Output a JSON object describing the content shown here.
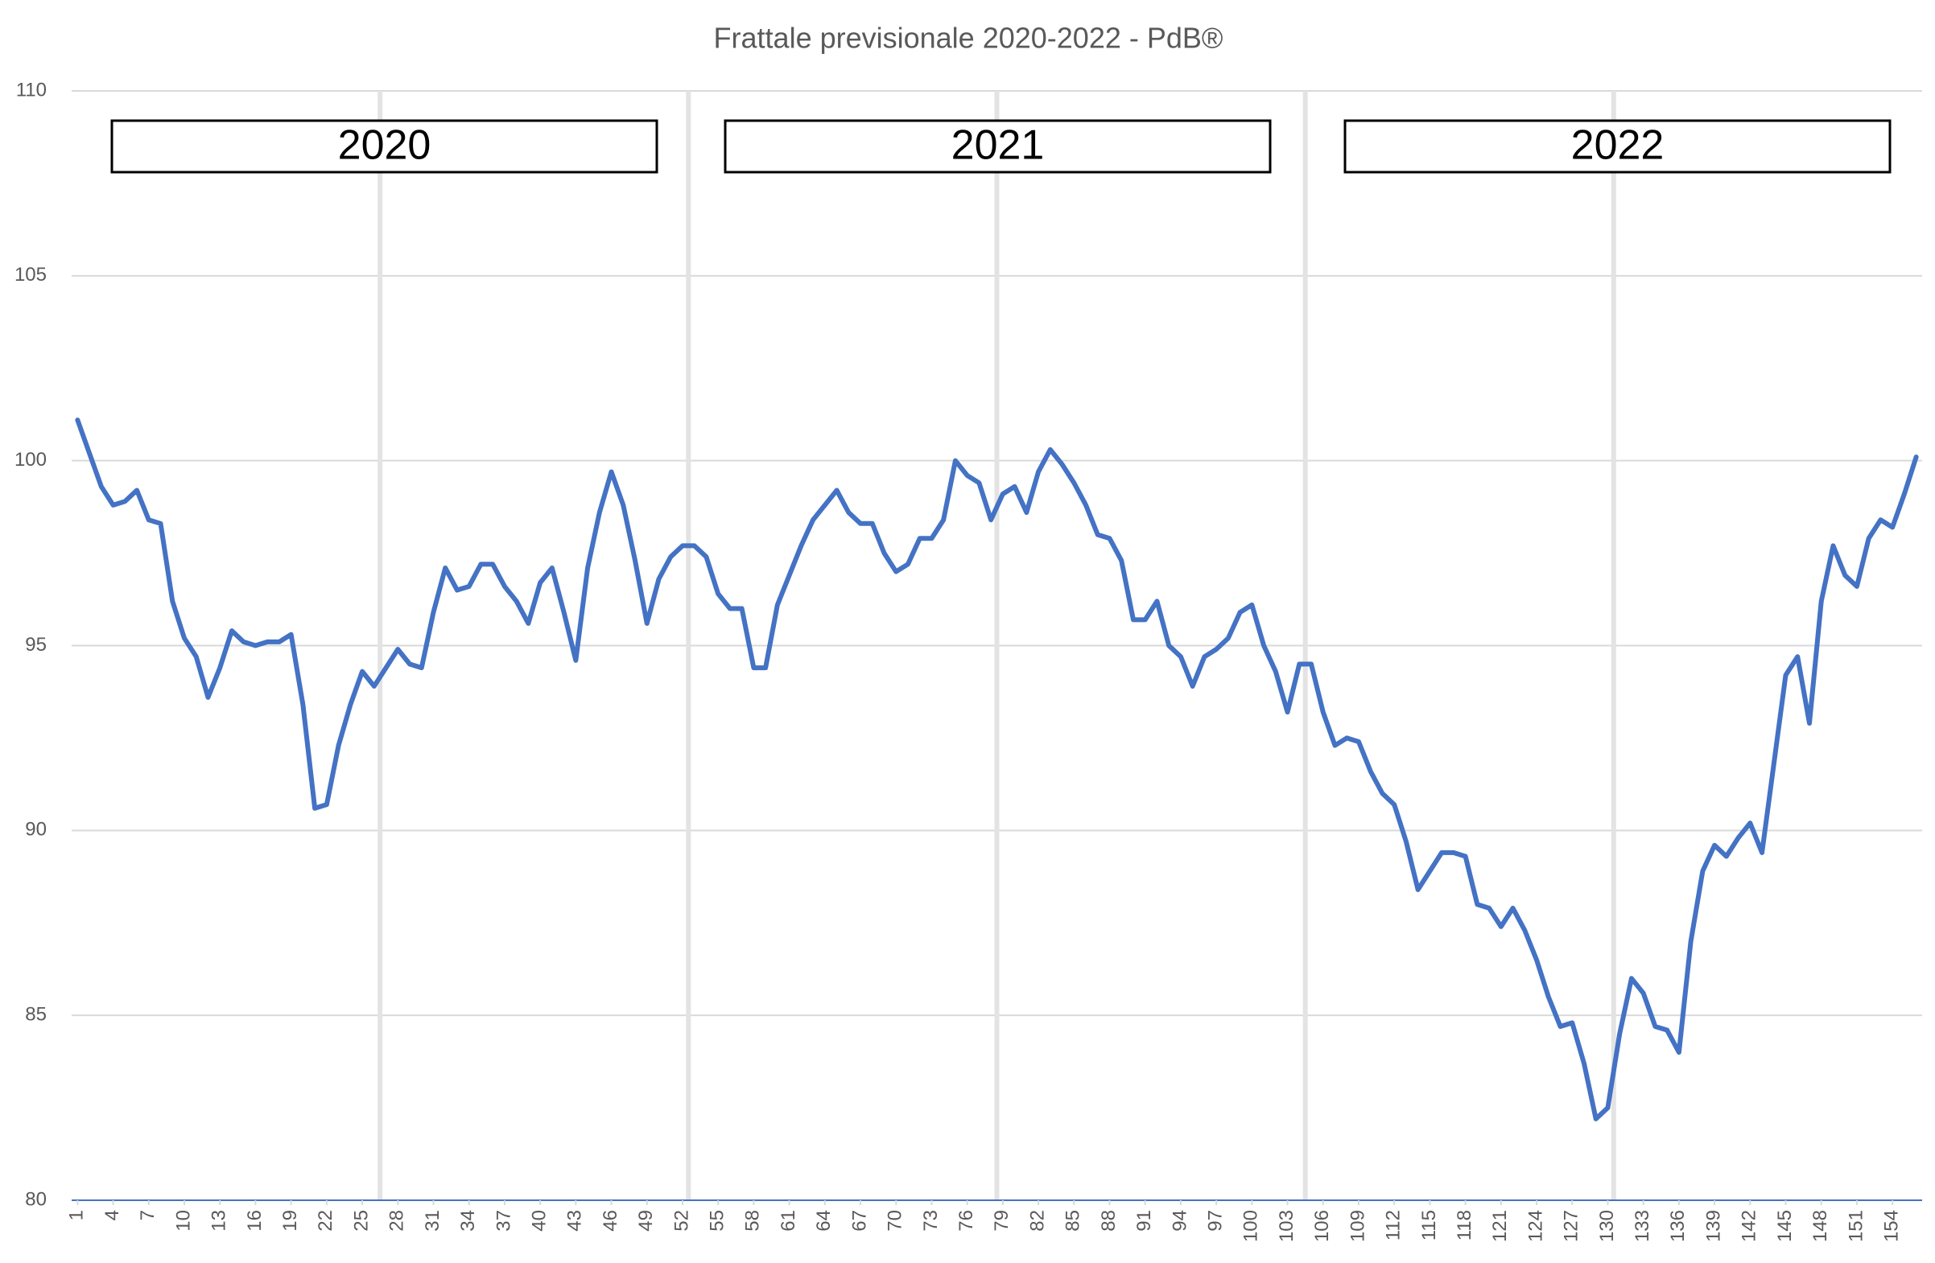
{
  "chart_data": {
    "type": "line",
    "title": "Frattale previsionale 2020-2022 - PdB®",
    "annotations": [
      "2020",
      "2021",
      "2022"
    ],
    "x": [
      1,
      2,
      3,
      4,
      5,
      6,
      7,
      8,
      9,
      10,
      11,
      12,
      13,
      14,
      15,
      16,
      17,
      18,
      19,
      20,
      21,
      22,
      23,
      24,
      25,
      26,
      27,
      28,
      29,
      30,
      31,
      32,
      33,
      34,
      35,
      36,
      37,
      38,
      39,
      40,
      41,
      42,
      43,
      44,
      45,
      46,
      47,
      48,
      49,
      50,
      51,
      52,
      53,
      54,
      55,
      56,
      57,
      58,
      59,
      60,
      61,
      62,
      63,
      64,
      65,
      66,
      67,
      68,
      69,
      70,
      71,
      72,
      73,
      74,
      75,
      76,
      77,
      78,
      79,
      80,
      81,
      82,
      83,
      84,
      85,
      86,
      87,
      88,
      89,
      90,
      91,
      92,
      93,
      94,
      95,
      96,
      97,
      98,
      99,
      100,
      101,
      102,
      103,
      104,
      105,
      106,
      107,
      108,
      109,
      110,
      111,
      112,
      113,
      114,
      115,
      116,
      117,
      118,
      119,
      120,
      121,
      122,
      123,
      124,
      125,
      126,
      127,
      128,
      129,
      130,
      131,
      132,
      133,
      134,
      135,
      136,
      137,
      138,
      139,
      140,
      141,
      142,
      143,
      144,
      145,
      146,
      147,
      148,
      149,
      150,
      151,
      152,
      153,
      154,
      155,
      156
    ],
    "values": [
      101.1,
      100.2,
      99.3,
      98.8,
      98.9,
      99.2,
      98.4,
      98.3,
      96.2,
      95.2,
      94.7,
      93.6,
      94.4,
      95.4,
      95.1,
      95.0,
      95.1,
      95.1,
      95.3,
      93.4,
      90.6,
      90.7,
      92.3,
      93.4,
      94.3,
      93.9,
      94.4,
      94.9,
      94.5,
      94.4,
      95.9,
      97.1,
      96.5,
      96.6,
      97.2,
      97.2,
      96.6,
      96.2,
      95.6,
      96.7,
      97.1,
      95.9,
      94.6,
      97.1,
      98.6,
      99.7,
      98.8,
      97.3,
      95.6,
      96.8,
      97.4,
      97.7,
      97.7,
      97.4,
      96.4,
      96.0,
      96.0,
      94.4,
      94.4,
      96.1,
      96.9,
      97.7,
      98.4,
      98.8,
      99.2,
      98.6,
      98.3,
      98.3,
      97.5,
      97.0,
      97.2,
      97.9,
      97.9,
      98.4,
      100.0,
      99.6,
      99.4,
      98.4,
      99.1,
      99.3,
      98.6,
      99.7,
      100.3,
      99.9,
      99.4,
      98.8,
      98.0,
      97.9,
      97.3,
      95.7,
      95.7,
      96.2,
      95.0,
      94.7,
      93.9,
      94.7,
      94.9,
      95.2,
      95.9,
      96.1,
      95.0,
      94.3,
      93.2,
      94.5,
      94.5,
      93.2,
      92.3,
      92.5,
      92.4,
      91.6,
      91.0,
      90.7,
      89.7,
      88.4,
      88.9,
      89.4,
      89.4,
      89.3,
      88.0,
      87.9,
      87.4,
      87.9,
      87.3,
      86.5,
      85.5,
      84.7,
      84.8,
      83.7,
      82.2,
      82.5,
      84.5,
      86.0,
      85.6,
      84.7,
      84.6,
      84.0,
      87.0,
      88.9,
      89.6,
      89.3,
      89.8,
      90.2,
      89.4,
      91.8,
      94.2,
      94.7,
      92.9,
      96.2,
      97.7,
      96.9,
      96.6,
      97.9,
      98.4,
      98.2,
      99.1,
      100.1
    ],
    "color": "#4472c4",
    "xlim": [
      0.5,
      156.5
    ],
    "xticks": [
      1,
      4,
      7,
      10,
      13,
      16,
      19,
      22,
      25,
      28,
      31,
      34,
      37,
      40,
      43,
      46,
      49,
      52,
      55,
      58,
      61,
      64,
      67,
      70,
      73,
      76,
      79,
      82,
      85,
      88,
      91,
      94,
      97,
      100,
      103,
      106,
      109,
      112,
      115,
      118,
      121,
      124,
      127,
      130,
      133,
      136,
      139,
      142,
      145,
      148,
      151,
      154
    ],
    "x_gridlines": [
      26.5,
      52.5,
      78.5,
      104.5,
      130.5
    ],
    "ylim": [
      80,
      110
    ],
    "yticks": [
      80,
      85,
      90,
      95,
      100,
      105,
      110
    ],
    "grid": true
  }
}
